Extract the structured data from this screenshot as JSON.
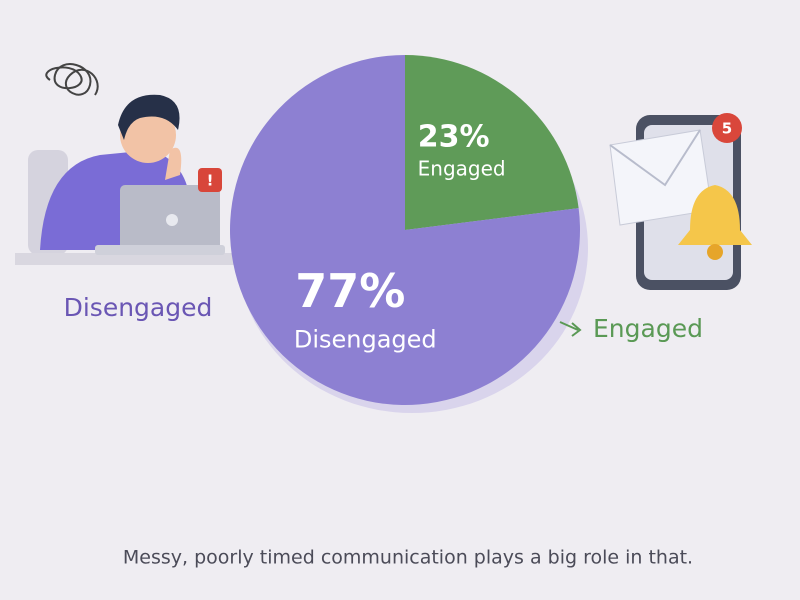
{
  "chart_data": {
    "type": "pie",
    "categories": [
      "Disengaged",
      "Engaged"
    ],
    "values": [
      77,
      23
    ],
    "value_labels": [
      "77%",
      "23%"
    ],
    "colors": [
      "#8d80d2",
      "#5f9b58"
    ],
    "label_colors": [
      "#6a56b4",
      "#5a9955"
    ],
    "start_angle": -90,
    "annotations": [
      "!",
      "5"
    ],
    "caption": "Messy, poorly timed communication plays a big role in that."
  }
}
